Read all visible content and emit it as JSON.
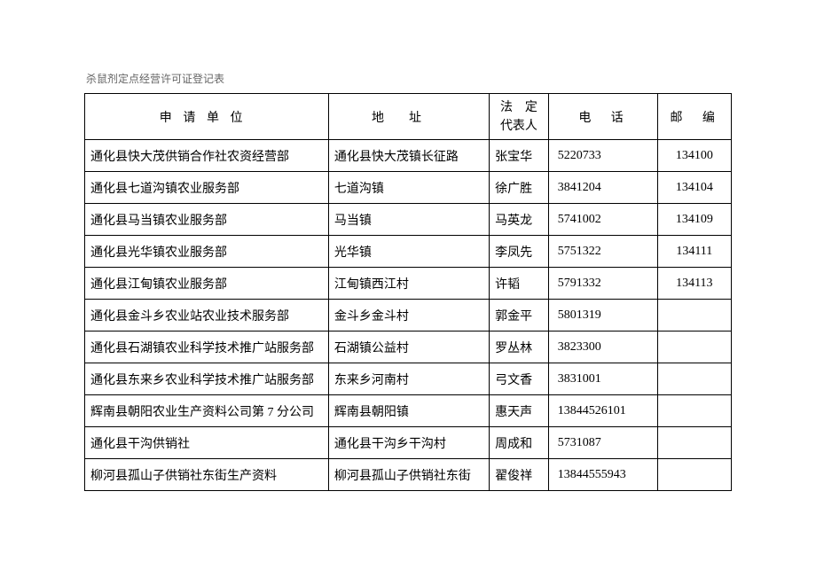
{
  "document": {
    "title": "杀鼠剂定点经营许可证登记表",
    "background_color": "#ffffff",
    "border_color": "#000000",
    "title_color": "#666666",
    "text_color": "#000000",
    "title_fontsize": 12,
    "cell_fontsize": 14
  },
  "columns": {
    "unit": "申请单位",
    "address": "地址",
    "rep": "法　定\n代表人",
    "tel": "电　话",
    "zip": "邮　编"
  },
  "rows": [
    {
      "unit": "通化县快大茂供销合作社农资经营部",
      "address": "通化县快大茂镇长征路",
      "rep": "张宝华",
      "tel": "5220733",
      "zip": "134100"
    },
    {
      "unit": "通化县七道沟镇农业服务部",
      "address": "七道沟镇",
      "rep": "徐广胜",
      "tel": "3841204",
      "zip": "134104"
    },
    {
      "unit": "通化县马当镇农业服务部",
      "address": "马当镇",
      "rep": "马英龙",
      "tel": "5741002",
      "zip": "134109"
    },
    {
      "unit": "通化县光华镇农业服务部",
      "address": "光华镇",
      "rep": "李凤先",
      "tel": "5751322",
      "zip": "134111"
    },
    {
      "unit": "通化县江甸镇农业服务部",
      "address": "江甸镇西江村",
      "rep": "许韬",
      "tel": "5791332",
      "zip": "134113"
    },
    {
      "unit": "通化县金斗乡农业站农业技术服务部",
      "address": "金斗乡金斗村",
      "rep": "郭金平",
      "tel": "5801319",
      "zip": ""
    },
    {
      "unit": "通化县石湖镇农业科学技术推广站服务部",
      "address": "石湖镇公益村",
      "rep": "罗丛林",
      "tel": "3823300",
      "zip": ""
    },
    {
      "unit": "通化县东来乡农业科学技术推广站服务部",
      "address": "东来乡河南村",
      "rep": "弓文香",
      "tel": "3831001",
      "zip": ""
    },
    {
      "unit": "辉南县朝阳农业生产资料公司第 7 分公司",
      "address": "辉南县朝阳镇",
      "rep": "惠天声",
      "tel": "13844526101",
      "zip": ""
    },
    {
      "unit": "通化县干沟供销社",
      "address": "通化县干沟乡干沟村",
      "rep": "周成和",
      "tel": "5731087",
      "zip": ""
    },
    {
      "unit": "柳河县孤山子供销社东街生产资料",
      "address": "柳河县孤山子供销社东街",
      "rep": "翟俊祥",
      "tel": "13844555943",
      "zip": ""
    }
  ]
}
